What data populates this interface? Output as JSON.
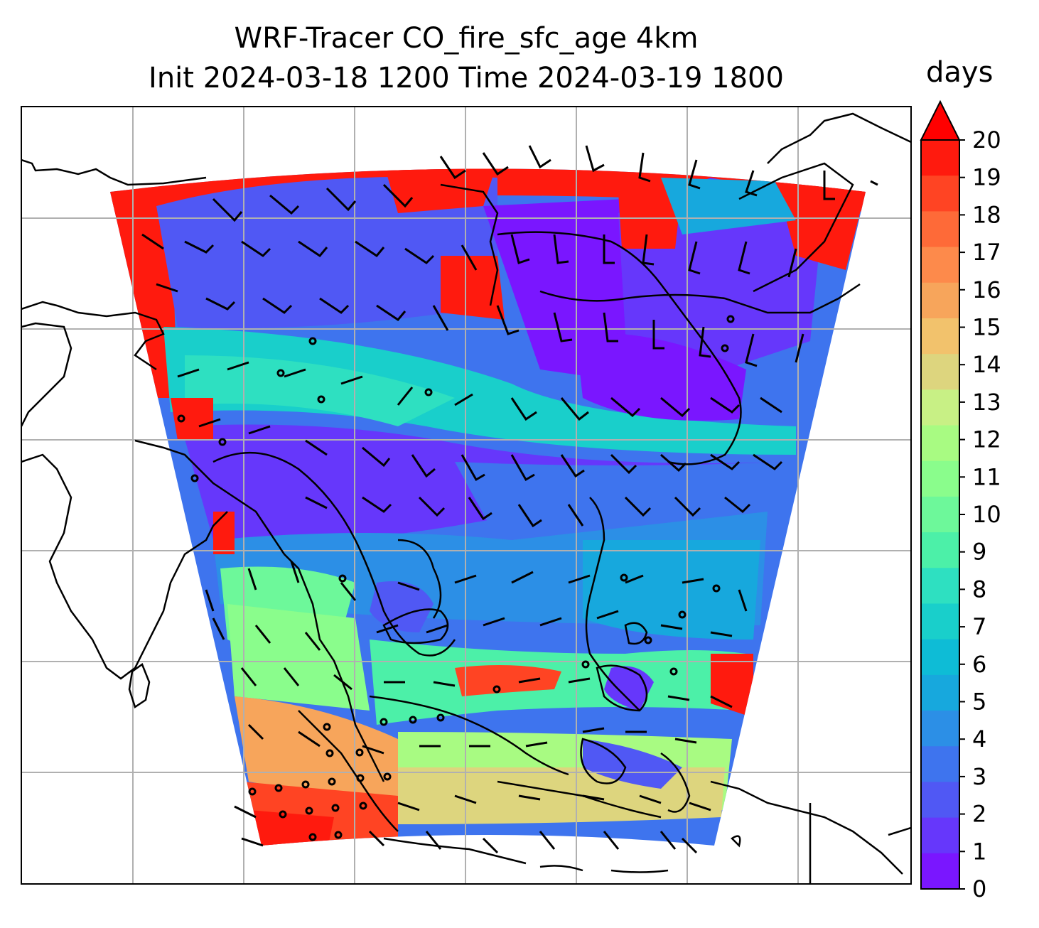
{
  "title_line1": "WRF-Tracer CO_fire_sfc_age 4km",
  "title_line2": "Init 2024-03-18 1200 Time 2024-03-19 1800",
  "colorbar": {
    "units": "days",
    "ticks": [
      "0",
      "1",
      "2",
      "3",
      "4",
      "5",
      "6",
      "7",
      "8",
      "9",
      "10",
      "11",
      "12",
      "13",
      "14",
      "15",
      "16",
      "17",
      "18",
      "19",
      "20"
    ],
    "levels": [
      0,
      20
    ],
    "extend": "max",
    "colors": [
      "#7a16ff",
      "#6637fb",
      "#5058f4",
      "#3e74ee",
      "#2c8fe6",
      "#17a8dd",
      "#0ebcd6",
      "#19cfcb",
      "#2ee0c1",
      "#4cf0a8",
      "#6df89a",
      "#8afd8c",
      "#a8fb82",
      "#c8f085",
      "#ddd57e",
      "#f2c26c",
      "#f7a55b",
      "#fd8a4b",
      "#fe6a38",
      "#ff4423",
      "#ff1a0e"
    ],
    "over_color": "#ff0000"
  },
  "field": {
    "name": "CO_fire_sfc_age",
    "regions": [
      {
        "label": "north-outer-ring",
        "value": 20
      },
      {
        "label": "north-interior",
        "value": 2
      },
      {
        "label": "central-channel",
        "value": 5
      },
      {
        "label": "south-west",
        "value": 12
      },
      {
        "label": "south-edge",
        "value": 17
      },
      {
        "label": "east-edge",
        "value": 20
      }
    ]
  },
  "overlays": {
    "gridlines": true,
    "coastlines": true,
    "wind_barbs": true
  }
}
